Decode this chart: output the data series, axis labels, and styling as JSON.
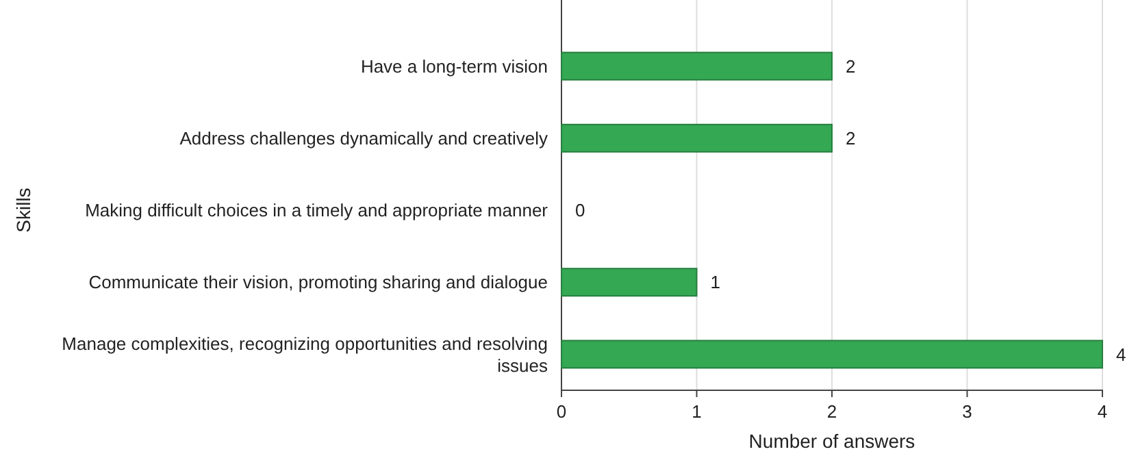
{
  "chart_data": {
    "type": "bar",
    "orientation": "horizontal",
    "xlabel": "Number of answers",
    "ylabel": "Skills",
    "categories": [
      "Have a long-term vision",
      "Address challenges dynamically and creatively",
      "Making difficult choices in a timely and appropriate manner",
      "Communicate their vision, promoting sharing and dialogue",
      "Manage complexities, recognizing opportunities and resolving issues"
    ],
    "values": [
      2,
      2,
      0,
      1,
      4
    ],
    "color": "#34a853",
    "xlim": [
      0,
      4
    ],
    "xticks": [
      0,
      1,
      2,
      3,
      4
    ],
    "grid": "x",
    "data_labels": true
  }
}
